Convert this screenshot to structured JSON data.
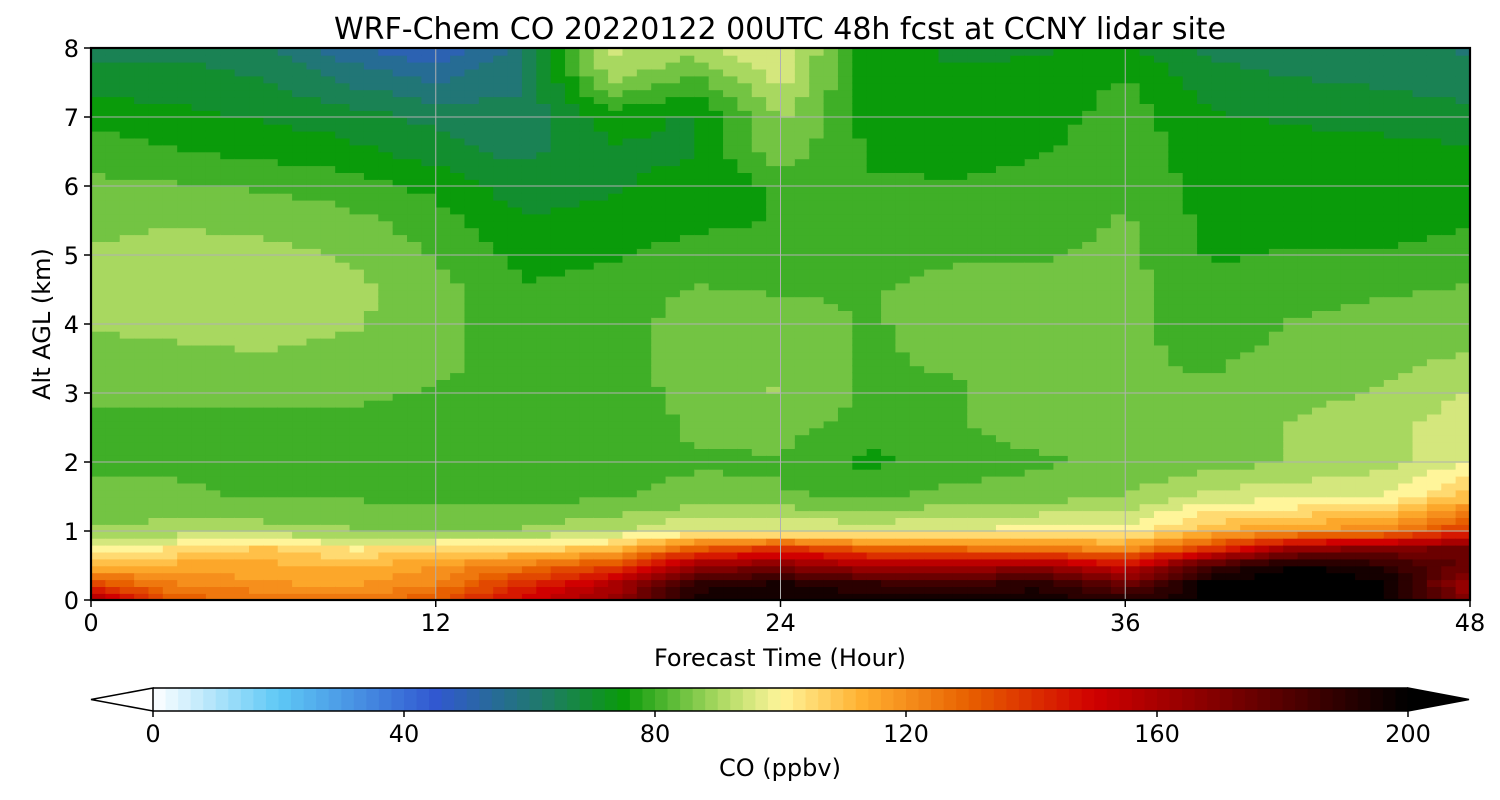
{
  "chart_data": {
    "type": "heatmap",
    "title": "WRF-Chem CO  20220122 00UTC 48h fcst at CCNY lidar site",
    "xlabel": "Forecast Time (Hour)",
    "ylabel": "Alt AGL (km)",
    "xlim": [
      0,
      48
    ],
    "ylim": [
      0,
      8
    ],
    "xticks": [
      0,
      12,
      24,
      36,
      48
    ],
    "yticks": [
      0,
      1,
      2,
      3,
      4,
      5,
      6,
      7,
      8
    ],
    "grid": true,
    "colorbar": {
      "label": "CO  (ppbv)",
      "range": [
        0,
        200
      ],
      "ticks": [
        0,
        40,
        80,
        120,
        160,
        200
      ],
      "extend": "both",
      "orientation": "horizontal",
      "position": "bottom",
      "colors": [
        {
          "v": 0,
          "c": "#ffffff"
        },
        {
          "v": 20,
          "c": "#5ec8f5"
        },
        {
          "v": 45,
          "c": "#3158d0"
        },
        {
          "v": 62,
          "c": "#1f7a6a"
        },
        {
          "v": 75,
          "c": "#0a9b0a"
        },
        {
          "v": 90,
          "c": "#a8d860"
        },
        {
          "v": 100,
          "c": "#fff59a"
        },
        {
          "v": 113,
          "c": "#ffb030"
        },
        {
          "v": 130,
          "c": "#e86000"
        },
        {
          "v": 150,
          "c": "#d00000"
        },
        {
          "v": 170,
          "c": "#800000"
        },
        {
          "v": 200,
          "c": "#000000"
        }
      ]
    },
    "x": [
      0,
      3,
      6,
      9,
      12,
      15,
      18,
      21,
      24,
      27,
      30,
      33,
      36,
      39,
      42,
      45,
      48
    ],
    "y": [
      0,
      0.25,
      0.5,
      0.75,
      1,
      1.5,
      2,
      2.5,
      3,
      3.5,
      4,
      4.5,
      5,
      5.5,
      6,
      6.5,
      7,
      7.5,
      8
    ],
    "z": [
      [
        160,
        130,
        128,
        125,
        132,
        150,
        165,
        195,
        198,
        196,
        195,
        198,
        190,
        200,
        200,
        200,
        170
      ],
      [
        135,
        122,
        118,
        116,
        122,
        140,
        155,
        190,
        193,
        188,
        185,
        190,
        175,
        200,
        200,
        200,
        160
      ],
      [
        112,
        115,
        114,
        112,
        118,
        125,
        135,
        165,
        170,
        160,
        160,
        165,
        150,
        185,
        200,
        190,
        175
      ],
      [
        98,
        103,
        108,
        102,
        104,
        105,
        110,
        130,
        140,
        130,
        128,
        125,
        120,
        140,
        165,
        170,
        175
      ],
      [
        88,
        90,
        90,
        88,
        88,
        88,
        92,
        98,
        99,
        96,
        98,
        100,
        99,
        112,
        118,
        122,
        140
      ],
      [
        83,
        83,
        82,
        82,
        81,
        81,
        82,
        84,
        83,
        82,
        84,
        85,
        88,
        95,
        96,
        98,
        110
      ],
      [
        82,
        82,
        82,
        82,
        81,
        80,
        81,
        82,
        82,
        76,
        80,
        82,
        83,
        85,
        88,
        91,
        97
      ],
      [
        80,
        79,
        80,
        80,
        79,
        78,
        80,
        83,
        84,
        80,
        82,
        84,
        83,
        85,
        88,
        91,
        96
      ],
      [
        84,
        85,
        84,
        84,
        82,
        80,
        80,
        84,
        88,
        82,
        82,
        84,
        83,
        83,
        86,
        88,
        93
      ],
      [
        86,
        87,
        87,
        86,
        84,
        80,
        80,
        85,
        87,
        82,
        83,
        84,
        83,
        82,
        84,
        86,
        88
      ],
      [
        88,
        88,
        89,
        88,
        85,
        79,
        80,
        85,
        85,
        82,
        84,
        84,
        84,
        80,
        83,
        84,
        85
      ],
      [
        89,
        90,
        91,
        89,
        85,
        78,
        79,
        83,
        82,
        82,
        84,
        84,
        84,
        79,
        81,
        82,
        83
      ],
      [
        88,
        90,
        89,
        87,
        82,
        76,
        77,
        80,
        80,
        81,
        82,
        82,
        84,
        77,
        78,
        78,
        79
      ],
      [
        86,
        87,
        86,
        84,
        80,
        73,
        74,
        76,
        78,
        80,
        80,
        80,
        83,
        76,
        76,
        76,
        77
      ],
      [
        84,
        83,
        82,
        80,
        76,
        70,
        72,
        74,
        78,
        78,
        78,
        79,
        82,
        75,
        75,
        75,
        75
      ],
      [
        80,
        78,
        76,
        74,
        70,
        66,
        72,
        72,
        86,
        77,
        76,
        77,
        81,
        74,
        74,
        74,
        73
      ],
      [
        76,
        74,
        72,
        70,
        66,
        64,
        74,
        72,
        88,
        76,
        75,
        75,
        80,
        73,
        72,
        71,
        70
      ],
      [
        70,
        70,
        68,
        62,
        58,
        62,
        88,
        80,
        94,
        75,
        73,
        74,
        78,
        70,
        68,
        67,
        64
      ],
      [
        66,
        66,
        64,
        54,
        48,
        60,
        94,
        90,
        98,
        74,
        72,
        72,
        74,
        66,
        64,
        63,
        62
      ]
    ]
  }
}
